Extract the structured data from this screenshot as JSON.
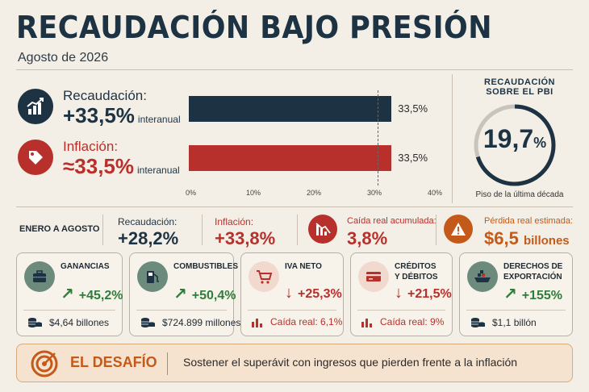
{
  "header": {
    "title": "RECAUDACIÓN BAJO PRESIÓN",
    "subtitle": "Agosto de 2026"
  },
  "top": {
    "recaudacion": {
      "label": "Recaudación:",
      "value": "+33,5%",
      "unit": "interanual",
      "icon": "trend-chart-icon"
    },
    "inflacion": {
      "label": "Inflación:",
      "value": "≈33,5%",
      "unit": "interanual",
      "icon": "price-tag-icon"
    }
  },
  "chart_data": {
    "type": "bar",
    "orientation": "horizontal",
    "categories": [
      "Recaudación",
      "Inflación"
    ],
    "values": [
      33.5,
      33.5
    ],
    "value_labels": [
      "33,5%",
      "33,5%"
    ],
    "xlim": [
      0,
      40
    ],
    "ticks": [
      "0%",
      "10%",
      "20%",
      "30%",
      "40%"
    ],
    "colors": [
      "#1d3344",
      "#b8302b"
    ],
    "reference_line": 33.5
  },
  "gauge": {
    "title_line1": "RECAUDACIÓN",
    "title_line2": "SOBRE EL PBI",
    "value": "19,7",
    "pct": "%",
    "caption": "Piso de la última década",
    "fill_fraction": 0.7
  },
  "summary": {
    "period": "ENERO A AGOSTO",
    "recaudacion_label": "Recaudación:",
    "recaudacion_value": "+28,2%",
    "inflacion_label": "Inflación:",
    "inflacion_value": "+33,8%",
    "caida_label": "Caída real acumulada:",
    "caida_value": "3,8%",
    "perdida_label": "Pérdida real estimada:",
    "perdida_value": "$6,5",
    "perdida_unit": "billones"
  },
  "cards": [
    {
      "title_l1": "GANANCIAS",
      "title_l2": "",
      "arrow": "↗",
      "change": "+45,2%",
      "foot": "$4,64 billones",
      "icon": "briefcase-icon"
    },
    {
      "title_l1": "COMBUSTIBLES",
      "title_l2": "",
      "arrow": "↗",
      "change": "+50,4%",
      "foot": "$724.899 millones",
      "icon": "fuel-pump-icon"
    },
    {
      "title_l1": "IVA NETO",
      "title_l2": "",
      "arrow": "↓",
      "change": "+25,3%",
      "foot": "Caída real: 6,1%",
      "icon": "shopping-cart-icon"
    },
    {
      "title_l1": "CRÉDITOS",
      "title_l2": "Y DÉBITOS",
      "arrow": "↓",
      "change": "+21,5%",
      "foot": "Caída real: 9%",
      "icon": "credit-card-icon"
    },
    {
      "title_l1": "DERECHOS DE",
      "title_l2": "EXPORTACIÓN",
      "arrow": "↗",
      "change": "+155%",
      "foot": "$1,1 billón",
      "icon": "cargo-ship-icon"
    }
  ],
  "challenge": {
    "title": "EL DESAFÍO",
    "text": "Sostener el superávit con ingresos que pierden frente a la inflación"
  },
  "colors": {
    "navy": "#1d3344",
    "red": "#b8302b",
    "green": "#2e7d3a",
    "orange": "#c45a1a"
  }
}
